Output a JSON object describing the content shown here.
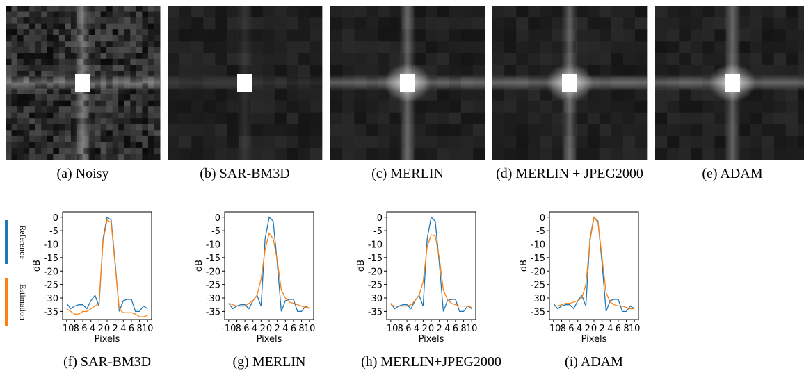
{
  "images": [
    {
      "caption": "(a) Noisy"
    },
    {
      "caption": "(b) SAR-BM3D"
    },
    {
      "caption": "(c) MERLIN"
    },
    {
      "caption": "(d) MERLIN + JPEG2000"
    },
    {
      "caption": "(e) ADAM"
    }
  ],
  "chart_data": [
    {
      "type": "line",
      "title": "(f) SAR-BM3D",
      "x_label": "Pixels",
      "y_label": "dB",
      "x": [
        -10,
        -9,
        -8,
        -7,
        -6,
        -5,
        -4,
        -3,
        -2,
        -1,
        0,
        1,
        2,
        3,
        4,
        5,
        6,
        7,
        8,
        9,
        10
      ],
      "xlim": [
        -11,
        11
      ],
      "xticks": [
        -10,
        -8,
        -6,
        -4,
        -2,
        0,
        2,
        4,
        6,
        8,
        10
      ],
      "ylim": [
        -38,
        2
      ],
      "yticks": [
        0,
        -5,
        -10,
        -15,
        -20,
        -25,
        -30,
        -35
      ],
      "series": [
        {
          "name": "Reference",
          "color": "#1f77b4",
          "values": [
            -32,
            -34,
            -33,
            -32.5,
            -32.5,
            -34,
            -31,
            -29,
            -33,
            -8,
            0,
            -1,
            -17,
            -35,
            -31,
            -30.5,
            -30.5,
            -35,
            -35,
            -33,
            -34
          ]
        },
        {
          "name": "Estimation",
          "color": "#ff7f0e",
          "values": [
            -34,
            -35,
            -36,
            -36,
            -35,
            -35,
            -34,
            -33,
            -32,
            -9,
            -1,
            -2,
            -18,
            -34,
            -35.5,
            -35.5,
            -35.5,
            -36,
            -37,
            -37,
            -36.5
          ]
        }
      ]
    },
    {
      "type": "line",
      "title": "(g) MERLIN",
      "x_label": "Pixels",
      "y_label": "dB",
      "x": [
        -10,
        -9,
        -8,
        -7,
        -6,
        -5,
        -4,
        -3,
        -2,
        -1,
        0,
        1,
        2,
        3,
        4,
        5,
        6,
        7,
        8,
        9,
        10
      ],
      "xlim": [
        -11,
        11
      ],
      "xticks": [
        -10,
        -8,
        -6,
        -4,
        -2,
        0,
        2,
        4,
        6,
        8,
        10
      ],
      "ylim": [
        -38,
        2
      ],
      "yticks": [
        0,
        -5,
        -10,
        -15,
        -20,
        -25,
        -30,
        -35
      ],
      "series": [
        {
          "color": "#1f77b4",
          "values": [
            -32,
            -34,
            -33,
            -32.5,
            -32.5,
            -34,
            -31,
            -29,
            -33,
            -8,
            0,
            -1.5,
            -17,
            -35,
            -31,
            -30.5,
            -30.5,
            -35,
            -35,
            -33,
            -34
          ]
        },
        {
          "color": "#ff7f0e",
          "values": [
            -32,
            -32.5,
            -33,
            -33,
            -33,
            -32,
            -31,
            -29,
            -23,
            -12,
            -6,
            -8,
            -16,
            -27,
            -30,
            -31.5,
            -32,
            -32.5,
            -33,
            -33.5,
            -33.5
          ]
        }
      ]
    },
    {
      "type": "line",
      "title": "(h) MERLIN+JPEG2000",
      "x_label": "Pixels",
      "y_label": "dB",
      "x": [
        -10,
        -9,
        -8,
        -7,
        -6,
        -5,
        -4,
        -3,
        -2,
        -1,
        0,
        1,
        2,
        3,
        4,
        5,
        6,
        7,
        8,
        9,
        10
      ],
      "xlim": [
        -11,
        11
      ],
      "xticks": [
        -10,
        -8,
        -6,
        -4,
        -2,
        0,
        2,
        4,
        6,
        8,
        10
      ],
      "ylim": [
        -38,
        2
      ],
      "yticks": [
        0,
        -5,
        -10,
        -15,
        -20,
        -25,
        -30,
        -35
      ],
      "series": [
        {
          "color": "#1f77b4",
          "values": [
            -32,
            -34,
            -33,
            -32.5,
            -32.5,
            -34,
            -31,
            -29,
            -33,
            -8,
            0,
            -1.5,
            -17,
            -35,
            -31,
            -30.5,
            -30.5,
            -35,
            -35,
            -33,
            -34
          ]
        },
        {
          "color": "#ff7f0e",
          "values": [
            -32.5,
            -33,
            -33,
            -33,
            -33,
            -32.5,
            -31,
            -29,
            -24,
            -11,
            -6.5,
            -7,
            -15,
            -27,
            -30.5,
            -32,
            -32.5,
            -33,
            -33,
            -33,
            -33.5
          ]
        }
      ]
    },
    {
      "type": "line",
      "title": "(i) ADAM",
      "x_label": "Pixels",
      "y_label": "dB",
      "x": [
        -10,
        -9,
        -8,
        -7,
        -6,
        -5,
        -4,
        -3,
        -2,
        -1,
        0,
        1,
        2,
        3,
        4,
        5,
        6,
        7,
        8,
        9,
        10
      ],
      "xlim": [
        -11,
        11
      ],
      "xticks": [
        -10,
        -8,
        -6,
        -4,
        -2,
        0,
        2,
        4,
        6,
        8,
        10
      ],
      "ylim": [
        -38,
        2
      ],
      "yticks": [
        0,
        -5,
        -10,
        -15,
        -20,
        -25,
        -30,
        -35
      ],
      "series": [
        {
          "color": "#1f77b4",
          "values": [
            -32,
            -34,
            -33,
            -32.5,
            -32.5,
            -34,
            -31,
            -29,
            -33,
            -8,
            0,
            -1.5,
            -17,
            -35,
            -31,
            -30.5,
            -30.5,
            -35,
            -35,
            -33,
            -34
          ]
        },
        {
          "color": "#ff7f0e",
          "values": [
            -33,
            -33,
            -32.5,
            -32,
            -32,
            -31.5,
            -31,
            -30,
            -25,
            -9,
            0,
            -2,
            -15,
            -28,
            -31.5,
            -32.5,
            -33,
            -33,
            -33.5,
            -34,
            -34
          ]
        }
      ]
    }
  ]
}
